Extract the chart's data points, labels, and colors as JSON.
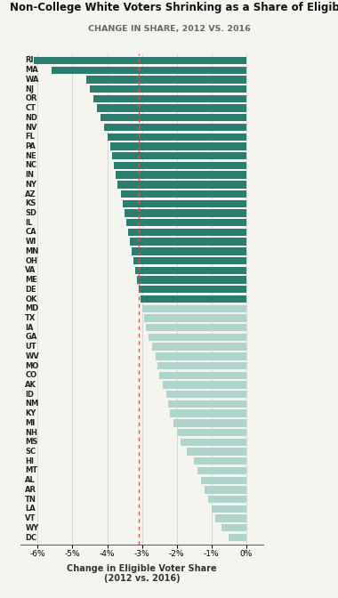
{
  "title": "Non-College White Voters Shrinking as a Share of Eligible Voters",
  "subtitle": "CHANGE IN SHARE, 2012 VS. 2016",
  "xlabel": "Change in Eligible Voter Share\n(2012 vs. 2016)",
  "us_line": -3.1,
  "xlim": [
    -6.5,
    0.5
  ],
  "xticks": [
    -6,
    -5,
    -4,
    -3,
    -2,
    -1,
    0
  ],
  "xtick_labels": [
    "-6%",
    "-5%",
    "-4%",
    "-3%",
    "-2%",
    "-1%",
    "0%"
  ],
  "states": [
    "RI",
    "MA",
    "WA",
    "NJ",
    "OR",
    "CT",
    "ND",
    "NV",
    "FL",
    "PA",
    "NE",
    "NC",
    "IN",
    "NY",
    "AZ",
    "KS",
    "SD",
    "IL",
    "CA",
    "WI",
    "MN",
    "OH",
    "VA",
    "ME",
    "DE",
    "OK",
    "MD",
    "TX",
    "IA",
    "GA",
    "UT",
    "WV",
    "MO",
    "CO",
    "AK",
    "ID",
    "NM",
    "KY",
    "MI",
    "NH",
    "MS",
    "SC",
    "HI",
    "MT",
    "AL",
    "AR",
    "TN",
    "LA",
    "VT",
    "WY",
    "DC"
  ],
  "values": [
    -6.1,
    -5.6,
    -4.6,
    -4.5,
    -4.4,
    -4.3,
    -4.2,
    -4.1,
    -4.0,
    -3.9,
    -3.85,
    -3.8,
    -3.75,
    -3.7,
    -3.6,
    -3.55,
    -3.5,
    -3.45,
    -3.4,
    -3.35,
    -3.3,
    -3.25,
    -3.2,
    -3.15,
    -3.1,
    -3.05,
    -3.0,
    -2.95,
    -2.9,
    -2.8,
    -2.7,
    -2.6,
    -2.55,
    -2.5,
    -2.4,
    -2.3,
    -2.25,
    -2.2,
    -2.1,
    -2.0,
    -1.9,
    -1.7,
    -1.5,
    -1.4,
    -1.3,
    -1.2,
    -1.1,
    -1.0,
    -0.9,
    -0.7,
    -0.5
  ],
  "dark_color": "#2d7d6e",
  "light_color": "#aed4cc",
  "threshold": -3.05,
  "background_color": "#f5f5f0",
  "bar_height": 0.78,
  "label_fontsize": 6.0,
  "title_fontsize": 8.5,
  "subtitle_fontsize": 6.8
}
